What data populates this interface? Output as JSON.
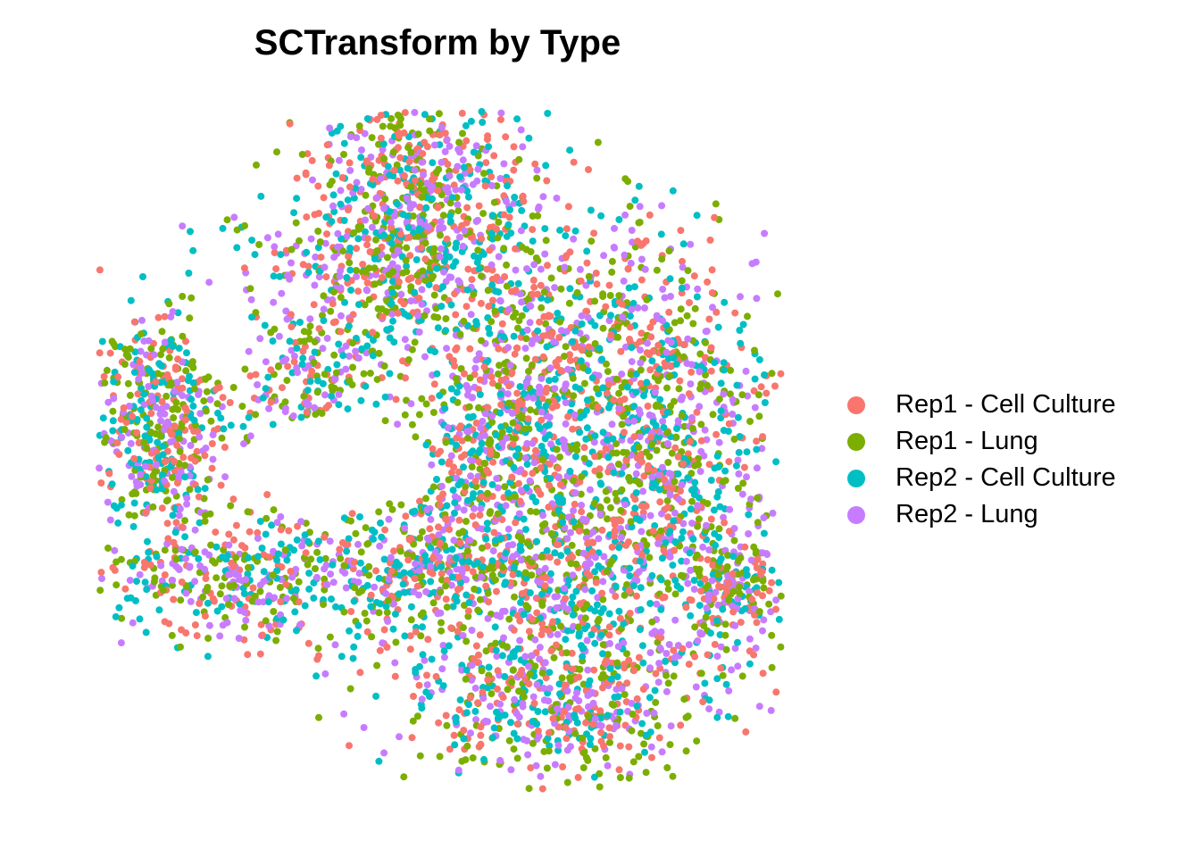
{
  "chart_data": {
    "type": "scatter",
    "title": "SCTransform by Type",
    "xlabel": "",
    "ylabel": "",
    "grid": false,
    "axes_visible": false,
    "legend_position": "right",
    "series": [
      {
        "name": "Rep1 - Cell Culture",
        "color": "#F8766D"
      },
      {
        "name": "Rep1 - Lung",
        "color": "#7CAE00"
      },
      {
        "name": "Rep2 - Cell Culture",
        "color": "#00BFC4"
      },
      {
        "name": "Rep2 - Lung",
        "color": "#C77CFF"
      }
    ]
  }
}
